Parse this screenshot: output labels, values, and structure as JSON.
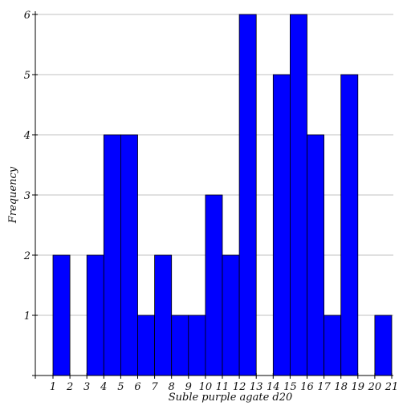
{
  "chart_data": {
    "type": "bar",
    "categories": [
      "1",
      "2",
      "3",
      "4",
      "5",
      "6",
      "7",
      "8",
      "9",
      "10",
      "11",
      "12",
      "13",
      "14",
      "15",
      "16",
      "17",
      "18",
      "19",
      "20"
    ],
    "x_ticks": [
      "1",
      "2",
      "3",
      "4",
      "5",
      "6",
      "7",
      "8",
      "9",
      "10",
      "11",
      "12",
      "13",
      "14",
      "15",
      "16",
      "17",
      "18",
      "19",
      "20",
      "21"
    ],
    "values": [
      2,
      0,
      2,
      4,
      4,
      1,
      2,
      1,
      1,
      3,
      2,
      6,
      0,
      5,
      6,
      4,
      1,
      5,
      0,
      1
    ],
    "xlabel": "Suble purple agate d20",
    "ylabel": "Frequency",
    "ylim": [
      0,
      6
    ],
    "xlim": [
      1,
      21
    ],
    "y_ticks": [
      "1",
      "2",
      "3",
      "4",
      "5",
      "6"
    ],
    "grid": "horizontal",
    "colors": {
      "bar": "#0000ff",
      "bar_edge": "#000000",
      "grid": "#c0c0c0",
      "axis": "#000000"
    }
  }
}
